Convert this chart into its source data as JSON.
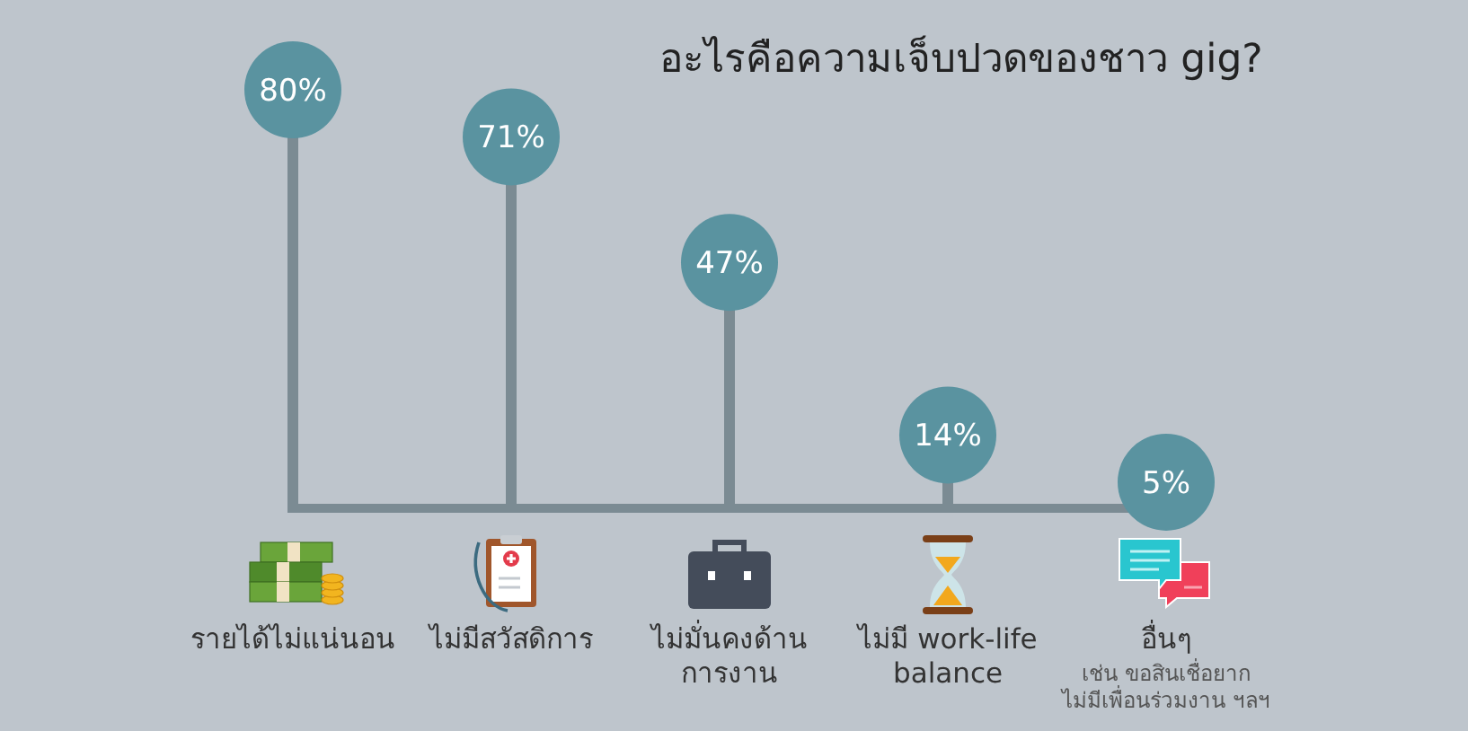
{
  "chart_data": {
    "type": "lollipop",
    "title": "อะไรคือความเจ็บปวดของชาว gig?",
    "categories": [
      "รายได้ไม่แน่นอน",
      "ไม่มีสวัสดิการ",
      "ไม่มั่นคงด้าน\nการงาน",
      "ไม่มี work-life\nbalance",
      "อื่นๆ"
    ],
    "values": [
      80,
      71,
      47,
      14,
      5
    ],
    "value_labels": [
      "80%",
      "71%",
      "47%",
      "14%",
      "5%"
    ],
    "color": "#5a93a0",
    "marker": "circle",
    "annotations": [
      "เช่น ขอสินเชื่อยาก\nไม่มีเพื่อนร่วมงาน ฯลฯ"
    ]
  }
}
